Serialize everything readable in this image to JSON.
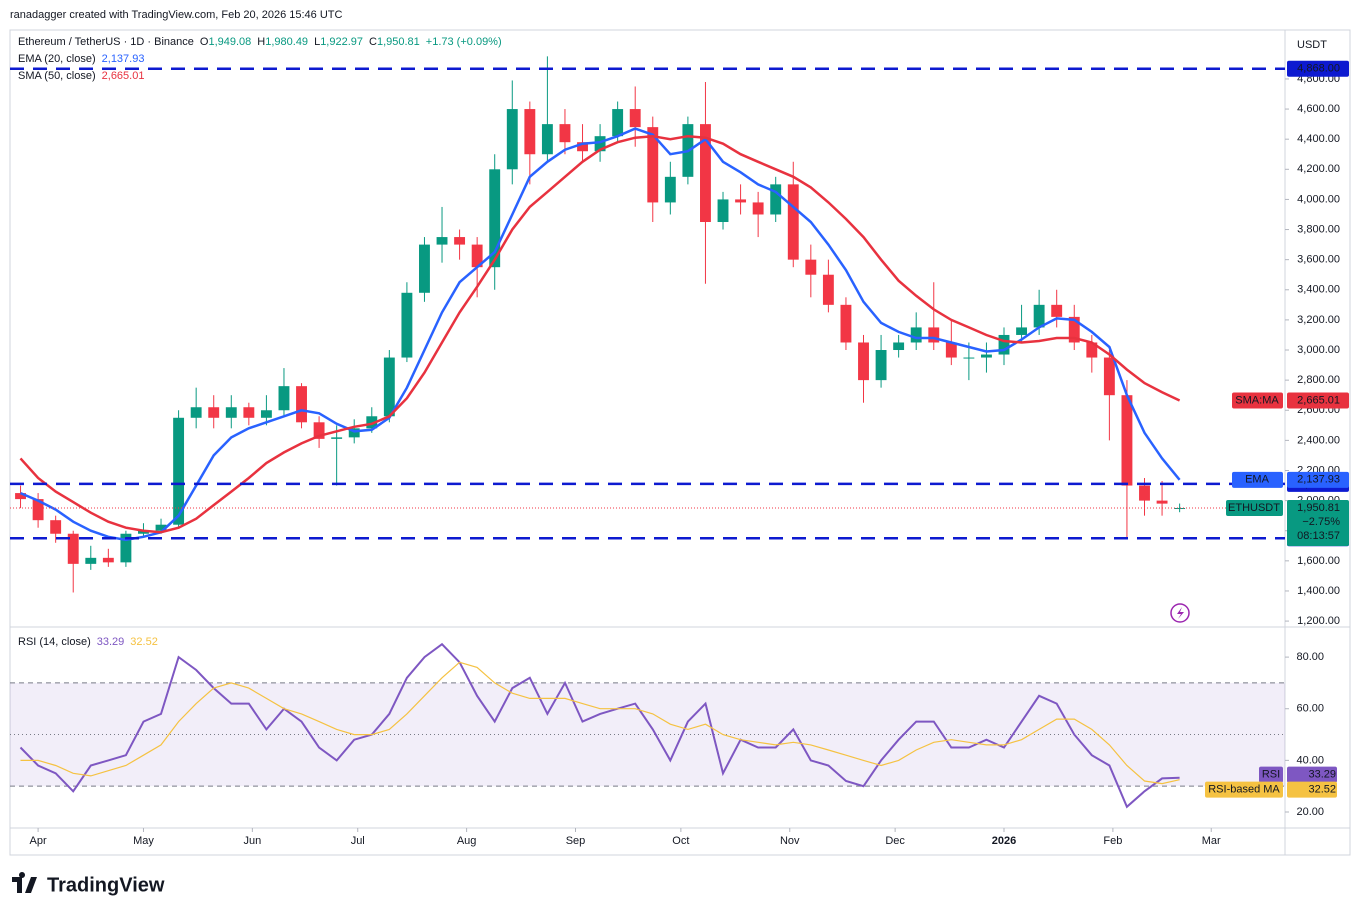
{
  "header": {
    "credit": "ranadagger created with TradingView.com, Feb 20, 2026 15:46 UTC",
    "brand": "TradingView"
  },
  "chart_data": [
    {
      "type": "candlestick",
      "symbol": "Ethereum / TetherUS · 1D · Binance",
      "ohlc_legend": [
        "O",
        "1,949.08",
        "H",
        "1,980.49",
        "L",
        "1,922.97",
        "C",
        "1,950.81",
        "+1.73 (+0.09%)"
      ],
      "currency": "USDT",
      "xlim": [
        -8,
        355
      ],
      "xticks": [
        {
          "value": 0,
          "label": "Apr"
        },
        {
          "value": 30,
          "label": "May"
        },
        {
          "value": 61,
          "label": "Jun"
        },
        {
          "value": 91,
          "label": "Jul"
        },
        {
          "value": 122,
          "label": "Aug"
        },
        {
          "value": 153,
          "label": "Sep"
        },
        {
          "value": 183,
          "label": "Oct"
        },
        {
          "value": 214,
          "label": "Nov"
        },
        {
          "value": 244,
          "label": "Dec"
        },
        {
          "value": 275,
          "label": "2026"
        },
        {
          "value": 306,
          "label": "Feb"
        },
        {
          "value": 334,
          "label": "Mar"
        }
      ],
      "ylim": [
        1174,
        5125
      ],
      "yticks": [
        {
          "value": 1200,
          "label": "1,200.00"
        },
        {
          "value": 1400,
          "label": "1,400.00"
        },
        {
          "value": 1600,
          "label": "1,600.00"
        },
        {
          "value": 1800,
          "label": "1,800.00"
        },
        {
          "value": 2000,
          "label": "2,000.00"
        },
        {
          "value": 2200,
          "label": "2,200.00"
        },
        {
          "value": 2400,
          "label": "2,400.00"
        },
        {
          "value": 2600,
          "label": "2,600.00"
        },
        {
          "value": 2800,
          "label": "2,800.00"
        },
        {
          "value": 3000,
          "label": "3,000.00"
        },
        {
          "value": 3200,
          "label": "3,200.00"
        },
        {
          "value": 3400,
          "label": "3,400.00"
        },
        {
          "value": 3600,
          "label": "3,600.00"
        },
        {
          "value": 3800,
          "label": "3,800.00"
        },
        {
          "value": 4000,
          "label": "4,000.00"
        },
        {
          "value": 4200,
          "label": "4,200.00"
        },
        {
          "value": 4400,
          "label": "4,400.00"
        },
        {
          "value": 4600,
          "label": "4,600.00"
        },
        {
          "value": 4800,
          "label": "4,800.00"
        }
      ],
      "x": [
        -5,
        0,
        5,
        10,
        15,
        20,
        25,
        30,
        35,
        40,
        45,
        50,
        55,
        60,
        65,
        70,
        75,
        80,
        85,
        90,
        95,
        100,
        105,
        110,
        115,
        120,
        125,
        130,
        135,
        140,
        145,
        150,
        155,
        160,
        165,
        170,
        175,
        180,
        185,
        190,
        195,
        200,
        205,
        210,
        215,
        220,
        225,
        230,
        235,
        240,
        245,
        250,
        255,
        260,
        265,
        270,
        275,
        280,
        285,
        290,
        295,
        300,
        305,
        310,
        315,
        320,
        325
      ],
      "open": [
        2050,
        2010,
        1870,
        1780,
        1580,
        1620,
        1590,
        1780,
        1800,
        1840,
        2550,
        2620,
        2550,
        2620,
        2550,
        2600,
        2760,
        2520,
        2410,
        2420,
        2480,
        2560,
        2950,
        3380,
        3700,
        3750,
        3700,
        3550,
        4200,
        4600,
        4300,
        4500,
        4380,
        4320,
        4420,
        4600,
        4480,
        3980,
        4150,
        4500,
        3850,
        4000,
        3980,
        3900,
        4100,
        3600,
        3500,
        3300,
        3050,
        2800,
        3000,
        3050,
        3150,
        3050,
        2950,
        2950,
        2970,
        3100,
        3150,
        3300,
        3220,
        3050,
        2950,
        2700,
        2100,
        2000,
        1949.08
      ],
      "high": [
        2100,
        2050,
        1900,
        1800,
        1700,
        1680,
        1800,
        1850,
        1880,
        2600,
        2750,
        2700,
        2700,
        2650,
        2700,
        2880,
        2780,
        2560,
        2500,
        2540,
        2620,
        3000,
        3450,
        3750,
        3950,
        3800,
        3750,
        4300,
        4790,
        4650,
        4950,
        4600,
        4500,
        4500,
        4650,
        4750,
        4550,
        4250,
        4550,
        4780,
        4050,
        4100,
        4050,
        4150,
        4250,
        3700,
        3600,
        3350,
        3100,
        3100,
        3100,
        3250,
        3450,
        3200,
        3050,
        3050,
        3150,
        3300,
        3400,
        3400,
        3300,
        3100,
        3000,
        2800,
        2150,
        2130,
        1980.49
      ],
      "low": [
        1950,
        1820,
        1720,
        1390,
        1540,
        1560,
        1560,
        1760,
        1780,
        1820,
        2480,
        2480,
        2480,
        2500,
        2500,
        2560,
        2480,
        2350,
        2100,
        2380,
        2450,
        2520,
        2920,
        3320,
        3580,
        3600,
        3350,
        3400,
        4100,
        4100,
        4250,
        4300,
        4250,
        4250,
        4380,
        4350,
        3850,
        3900,
        4100,
        3440,
        3800,
        3900,
        3750,
        3850,
        3550,
        3350,
        3250,
        3000,
        2650,
        2750,
        2950,
        3000,
        3000,
        2900,
        2800,
        2850,
        2900,
        3050,
        3100,
        3150,
        3000,
        2850,
        2400,
        1750,
        1900,
        1900,
        1922.97
      ],
      "close": [
        2010,
        1870,
        1780,
        1580,
        1620,
        1590,
        1780,
        1800,
        1840,
        2550,
        2620,
        2550,
        2620,
        2550,
        2600,
        2760,
        2520,
        2410,
        2420,
        2480,
        2560,
        2950,
        3380,
        3700,
        3750,
        3700,
        3550,
        4200,
        4600,
        4300,
        4500,
        4380,
        4320,
        4420,
        4600,
        4480,
        3980,
        4150,
        4500,
        3850,
        4000,
        3980,
        3900,
        4100,
        3600,
        3500,
        3300,
        3050,
        2800,
        3000,
        3050,
        3150,
        3050,
        2950,
        2950,
        2970,
        3100,
        3150,
        3300,
        3220,
        3050,
        2950,
        2700,
        2100,
        2000,
        1980,
        1950.81
      ],
      "up_color": "#089981",
      "down_color": "#f23645",
      "series": [
        {
          "name": "EMA (20, close)",
          "short_name": "EMA",
          "color": "#2962ff",
          "last_label": "2,137.93",
          "values": [
            2050,
            2000,
            1940,
            1860,
            1800,
            1760,
            1740,
            1760,
            1790,
            1900,
            2100,
            2300,
            2420,
            2480,
            2520,
            2560,
            2600,
            2580,
            2510,
            2460,
            2470,
            2550,
            2750,
            3000,
            3250,
            3450,
            3550,
            3650,
            3900,
            4150,
            4250,
            4330,
            4370,
            4380,
            4420,
            4470,
            4430,
            4300,
            4320,
            4400,
            4250,
            4180,
            4100,
            4050,
            3950,
            3850,
            3700,
            3530,
            3320,
            3180,
            3120,
            3080,
            3080,
            3050,
            3020,
            2990,
            3000,
            3070,
            3150,
            3210,
            3200,
            3120,
            3020,
            2700,
            2450,
            2280,
            2137.93
          ]
        },
        {
          "name": "SMA (50, close)",
          "short_name": "SMA:MA",
          "color": "#e8323f",
          "last_label": "2,665.01",
          "values": [
            2280,
            2150,
            2060,
            1990,
            1920,
            1860,
            1820,
            1800,
            1790,
            1820,
            1880,
            1970,
            2060,
            2150,
            2250,
            2320,
            2380,
            2430,
            2460,
            2490,
            2510,
            2560,
            2680,
            2850,
            3050,
            3250,
            3420,
            3600,
            3800,
            3950,
            4050,
            4150,
            4250,
            4330,
            4380,
            4410,
            4420,
            4400,
            4420,
            4410,
            4370,
            4300,
            4250,
            4200,
            4150,
            4080,
            3980,
            3870,
            3750,
            3600,
            3460,
            3360,
            3270,
            3200,
            3150,
            3100,
            3060,
            3050,
            3060,
            3080,
            3080,
            3050,
            2970,
            2870,
            2780,
            2720,
            2665.01
          ]
        }
      ],
      "levels": [
        {
          "value": 4868,
          "label": "4,868.00"
        },
        {
          "value": 2111,
          "label": "2,111.00"
        },
        {
          "value": 1750,
          "label": "1,750.00"
        }
      ],
      "level_color": "#0d1ad0",
      "last_price": {
        "name": "ETHUSDT",
        "value": 1950.81,
        "label": "1,950.81",
        "change": "−2.75%",
        "countdown": "08:13:57"
      }
    },
    {
      "type": "line",
      "title": "RSI (14, close)",
      "ylim": [
        13.8,
        90.5
      ],
      "yticks": [
        {
          "value": 20,
          "label": "20.00"
        },
        {
          "value": 40,
          "label": "40.00"
        },
        {
          "value": 60,
          "label": "60.00"
        },
        {
          "value": 80,
          "label": "80.00"
        }
      ],
      "bands": [
        30,
        70
      ],
      "midline": 50,
      "series": [
        {
          "name": "RSI",
          "color": "#7e57c2",
          "last_label": "33.29",
          "values": [
            45,
            38,
            35,
            28,
            38,
            40,
            42,
            55,
            58,
            80,
            75,
            68,
            62,
            62,
            52,
            60,
            55,
            45,
            40,
            48,
            50,
            58,
            72,
            80,
            85,
            78,
            65,
            55,
            68,
            72,
            58,
            70,
            55,
            58,
            60,
            62,
            52,
            40,
            55,
            62,
            35,
            48,
            45,
            45,
            52,
            40,
            38,
            32,
            30,
            40,
            48,
            55,
            55,
            45,
            45,
            48,
            45,
            55,
            65,
            62,
            50,
            42,
            38,
            22,
            28,
            33,
            33.29
          ]
        },
        {
          "name": "RSI-based MA",
          "color": "#f5c242",
          "last_label": "32.52",
          "values": [
            40,
            40,
            38,
            35,
            34,
            36,
            38,
            42,
            46,
            55,
            62,
            68,
            70,
            68,
            64,
            60,
            58,
            55,
            52,
            50,
            50,
            52,
            58,
            65,
            72,
            78,
            76,
            70,
            66,
            64,
            64,
            64,
            62,
            60,
            60,
            60,
            58,
            54,
            52,
            54,
            50,
            48,
            47,
            46,
            47,
            46,
            44,
            42,
            40,
            38,
            40,
            44,
            47,
            48,
            47,
            46,
            46,
            48,
            52,
            56,
            56,
            52,
            46,
            38,
            32,
            31,
            32.52
          ]
        }
      ]
    }
  ]
}
